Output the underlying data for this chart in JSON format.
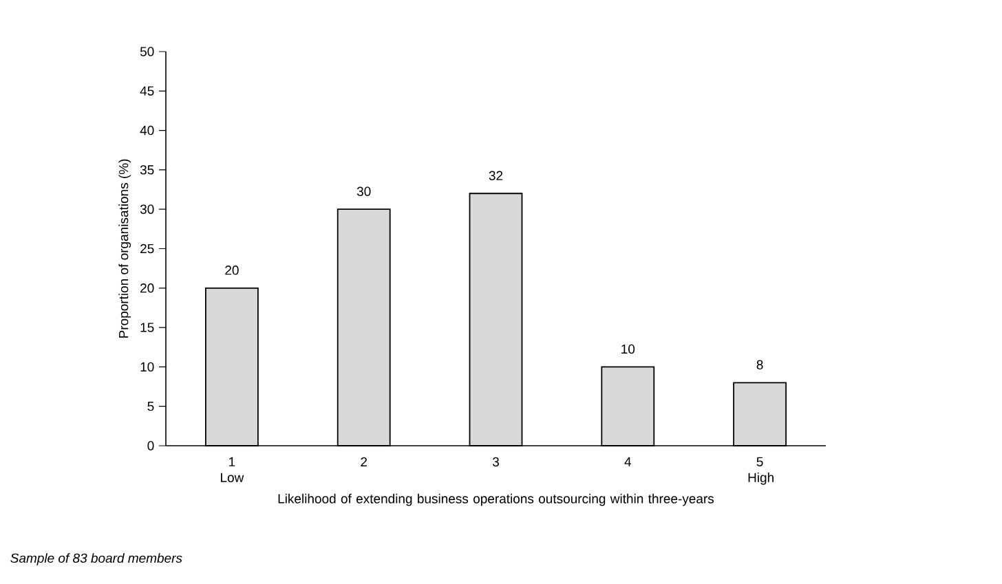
{
  "chart_data": {
    "type": "bar",
    "categories": [
      "1 Low",
      "2",
      "3",
      "4",
      "5 High"
    ],
    "values": [
      20,
      30,
      32,
      10,
      8
    ],
    "color": "#d9d9d9",
    "xlabel": "Likelihood of extending business operations outsourcing within three-years",
    "ylabel": "Proportion of organisations (%)",
    "ylim": [
      0,
      50
    ],
    "yticks": [
      0,
      5,
      10,
      15,
      20,
      25,
      30,
      35,
      40,
      45,
      50
    ],
    "data_labels": true,
    "grid": false,
    "annotations": [
      "*Sample of 83 board members*"
    ]
  }
}
